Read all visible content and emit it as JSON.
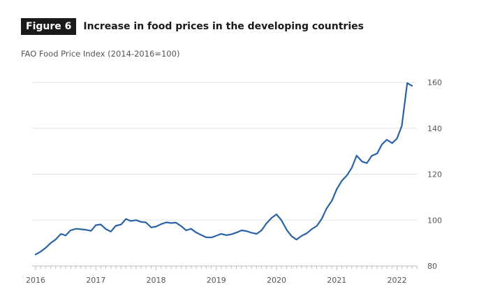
{
  "figure": {
    "label": "Figure 6",
    "title": "Increase in food prices in the developing countries"
  },
  "colors": {
    "line": "#2a62a6",
    "grid": "#e3e3e3",
    "axis": "#bdbdbd"
  },
  "chart_data": {
    "type": "line",
    "title": "Increase in food prices in the developing countries",
    "ylabel": "FAO Food Price Index (2014-2016=100)",
    "xlabel": "",
    "ylim": [
      80,
      160
    ],
    "yticks": [
      160,
      140,
      120,
      100,
      80
    ],
    "xlim": [
      2016.0,
      2022.33
    ],
    "xticks": [
      "2016",
      "2017",
      "2018",
      "2019",
      "2020",
      "2021",
      "2022"
    ],
    "grid": true,
    "series": [
      {
        "name": "FAO Food Price Index",
        "x": [
          2016.0,
          2016.08,
          2016.17,
          2016.25,
          2016.33,
          2016.42,
          2016.5,
          2016.58,
          2016.67,
          2016.75,
          2016.83,
          2016.92,
          2017.0,
          2017.08,
          2017.17,
          2017.25,
          2017.33,
          2017.42,
          2017.5,
          2017.58,
          2017.67,
          2017.75,
          2017.83,
          2017.92,
          2018.0,
          2018.08,
          2018.17,
          2018.25,
          2018.33,
          2018.42,
          2018.5,
          2018.58,
          2018.67,
          2018.75,
          2018.83,
          2018.92,
          2019.0,
          2019.08,
          2019.17,
          2019.25,
          2019.33,
          2019.42,
          2019.5,
          2019.58,
          2019.67,
          2019.75,
          2019.83,
          2019.92,
          2020.0,
          2020.08,
          2020.17,
          2020.25,
          2020.33,
          2020.42,
          2020.5,
          2020.58,
          2020.67,
          2020.75,
          2020.83,
          2020.92,
          2021.0,
          2021.08,
          2021.17,
          2021.25,
          2021.33,
          2021.42,
          2021.5,
          2021.58,
          2021.67,
          2021.75,
          2021.83,
          2021.92,
          2022.0,
          2022.08,
          2022.17,
          2022.25
        ],
        "values": [
          85.0,
          86.2,
          88.0,
          90.0,
          91.5,
          94.0,
          93.3,
          95.5,
          96.2,
          96.0,
          95.8,
          95.3,
          97.8,
          98.1,
          96.0,
          95.0,
          97.5,
          98.1,
          100.5,
          99.6,
          100.0,
          99.2,
          99.0,
          96.8,
          97.2,
          98.2,
          99.0,
          98.7,
          98.9,
          97.3,
          95.5,
          96.2,
          94.5,
          93.5,
          92.5,
          92.4,
          93.2,
          94.0,
          93.4,
          93.8,
          94.5,
          95.5,
          95.2,
          94.5,
          94.0,
          95.5,
          98.5,
          101.0,
          102.5,
          100.0,
          95.7,
          93.0,
          91.5,
          93.2,
          94.2,
          96.0,
          97.5,
          100.5,
          105.0,
          108.5,
          113.5,
          117.0,
          119.5,
          122.8,
          128.1,
          125.5,
          124.8,
          128.0,
          129.0,
          133.0,
          135.0,
          133.5,
          135.5,
          141.0,
          159.7,
          158.5
        ]
      }
    ]
  }
}
